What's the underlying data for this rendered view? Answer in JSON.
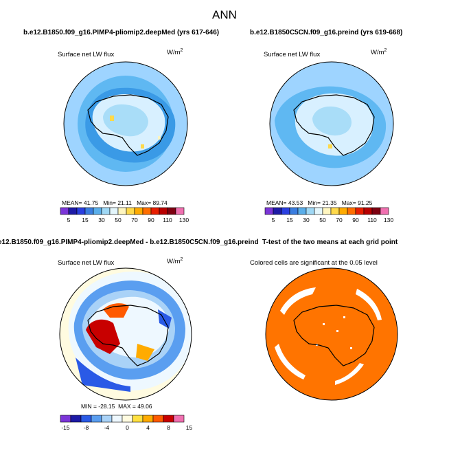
{
  "title": "ANN",
  "colors": {
    "ocean_base": "#9ed4ff",
    "ocean_mid": "#5fb8f2",
    "ocean_deep": "#3a9ae6",
    "ice_light": "#d8f0ff",
    "sig_orange": "#ff7400",
    "coast": "#000000"
  },
  "chart_data": [
    {
      "type": "heatmap",
      "title": "b.e12.B1850.f09_g16.PIMP4-pliomip2.deepMed (yrs 617-646)",
      "variable": "Surface net LW flux",
      "units": "W/m",
      "units_exp": "2",
      "stats": {
        "mean_label": "MEAN=",
        "mean": "41.75",
        "min_label": "Min=",
        "min": "21.11",
        "max_label": "Max=",
        "max": "89.74"
      },
      "colorbar": {
        "colors": [
          "#7b35d8",
          "#1d1aa6",
          "#2a3fe0",
          "#3a7de0",
          "#5aaeea",
          "#9fd8f5",
          "#e4f6fc",
          "#fff6c0",
          "#ffd94a",
          "#ffab00",
          "#ff6e00",
          "#e81e00",
          "#b80000",
          "#7d0010",
          "#f070b0"
        ],
        "ticks": [
          "5",
          "15",
          "30",
          "50",
          "70",
          "90",
          "110",
          "130"
        ]
      }
    },
    {
      "type": "heatmap",
      "title": "b.e12.B1850C5CN.f09_g16.preind (yrs 619-668)",
      "variable": "Surface net LW flux",
      "units": "W/m",
      "units_exp": "2",
      "stats": {
        "mean_label": "MEAN=",
        "mean": "43.53",
        "min_label": "Min=",
        "min": "21.35",
        "max_label": "Max=",
        "max": "91.25"
      },
      "colorbar": {
        "colors": [
          "#7b35d8",
          "#1d1aa6",
          "#2a3fe0",
          "#3a7de0",
          "#5aaeea",
          "#9fd8f5",
          "#e4f6fc",
          "#fff6c0",
          "#ffd94a",
          "#ffab00",
          "#ff6e00",
          "#e81e00",
          "#b80000",
          "#7d0010",
          "#f070b0"
        ],
        "ticks": [
          "5",
          "15",
          "30",
          "50",
          "70",
          "90",
          "110",
          "130"
        ]
      }
    },
    {
      "type": "heatmap",
      "title": "e12.B1850.f09_g16.PIMP4-pliomip2.deepMed - b.e12.B1850C5CN.f09_g16.preind",
      "variable": "Surface net LW flux",
      "units": "W/m",
      "units_exp": "2",
      "stats": {
        "min_label": "MIN =",
        "min": "-28.15",
        "max_label": "MAX =",
        "max": "49.06"
      },
      "colorbar": {
        "colors": [
          "#7b35d8",
          "#1d1aa6",
          "#2a5ae6",
          "#5a9ef0",
          "#a9d2f7",
          "#eef8ff",
          "#fffbe0",
          "#ffe040",
          "#ffab00",
          "#ff5a00",
          "#c80000",
          "#f070b0"
        ],
        "ticks": [
          "-15",
          "-8",
          "-4",
          "0",
          "4",
          "8",
          "15"
        ]
      }
    },
    {
      "type": "heatmap",
      "title": "T-test of the two means at each grid point",
      "variable": "Colored cells are significant at the 0.05 level"
    }
  ]
}
